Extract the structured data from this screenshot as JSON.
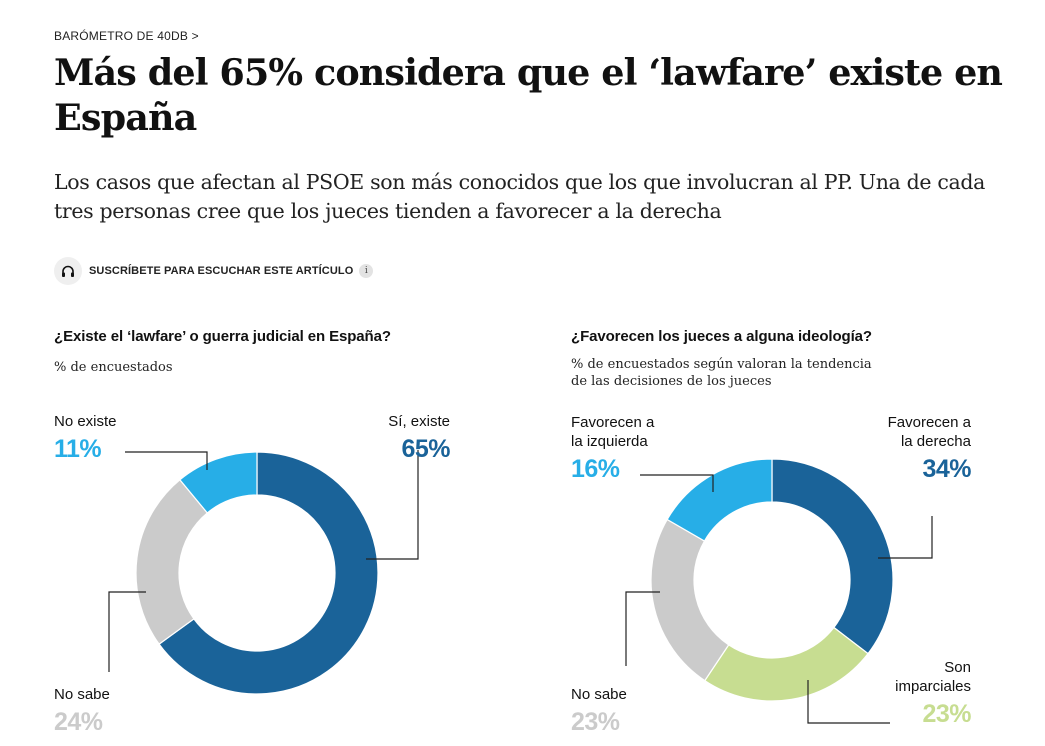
{
  "article": {
    "breadcrumb": "BARÓMETRO DE 40DB >",
    "headline": "Más del 65% considera que el ‘lawfare’ existe en España",
    "subtitle": "Los casos que afectan al PSOE son más conocidos que los que involucran al PP. Una de cada tres personas cree que los jueces tienden a favorecer a la derecha",
    "audio_label": "SUSCRÍBETE PARA ESCUCHAR ESTE ARTÍCULO",
    "audio_icon": "headphones-icon",
    "info_icon": "info-icon",
    "info_glyph": "i"
  },
  "chart_data": [
    {
      "type": "pie",
      "title": "¿Existe el ‘lawfare’ o guerra judicial en España?",
      "subtitle": "% de encuestados",
      "unit": "%",
      "slices": [
        {
          "label": "Sí, existe",
          "value": 65,
          "color": "#1a6399"
        },
        {
          "label": "No sabe",
          "value": 24,
          "color": "#cbcbcb"
        },
        {
          "label": "No existe",
          "value": 11,
          "color": "#27aee7"
        }
      ]
    },
    {
      "type": "pie",
      "title": "¿Favorecen los jueces a alguna ideología?",
      "subtitle": "% de encuestados según valoran la tendencia\nde las decisiones de los jueces",
      "unit": "%",
      "slices": [
        {
          "label": "Favorecen a\nla derecha",
          "value": 34,
          "color": "#1a6399"
        },
        {
          "label": "Son\nimparciales",
          "value": 23,
          "color": "#c7dd91"
        },
        {
          "label": "No sabe",
          "value": 23,
          "color": "#cbcbcb"
        },
        {
          "label": "Favorecen a\nla izquierda",
          "value": 16,
          "color": "#27aee7"
        }
      ]
    }
  ]
}
